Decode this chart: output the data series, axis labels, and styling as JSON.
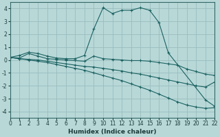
{
  "background_color": "#b8d8d8",
  "grid_color": "#9abcbc",
  "line_color": "#1a6060",
  "xlabel": "Humidex (Indice chaleur)",
  "xlim": [
    0,
    22
  ],
  "ylim": [
    -4.5,
    4.5
  ],
  "xticks": [
    0,
    1,
    2,
    3,
    4,
    5,
    6,
    7,
    8,
    9,
    10,
    11,
    12,
    13,
    14,
    15,
    16,
    17,
    18,
    19,
    20,
    21,
    22
  ],
  "yticks": [
    -4,
    -3,
    -2,
    -1,
    0,
    1,
    2,
    3,
    4
  ],
  "series": [
    {
      "x": [
        0,
        1,
        2,
        3,
        4,
        5,
        6,
        7,
        8,
        9,
        10,
        11,
        12,
        13,
        14,
        15,
        16,
        17,
        21,
        22
      ],
      "y": [
        0.2,
        0.35,
        0.6,
        0.5,
        0.3,
        0.15,
        0.1,
        0.1,
        0.35,
        2.4,
        4.05,
        3.6,
        3.85,
        3.85,
        4.05,
        3.85,
        2.9,
        0.55,
        -3.1,
        -3.6
      ]
    },
    {
      "x": [
        0,
        1,
        2,
        3,
        4,
        5,
        6,
        7,
        8,
        9,
        10,
        11,
        12,
        13,
        14,
        15,
        16,
        17,
        18,
        19,
        20,
        21,
        22
      ],
      "y": [
        0.2,
        0.15,
        0.5,
        0.3,
        0.1,
        0.05,
        -0.0,
        -0.05,
        -0.1,
        0.3,
        0.1,
        0.05,
        0.0,
        -0.05,
        -0.05,
        -0.1,
        -0.2,
        -0.3,
        -0.4,
        -0.7,
        -0.9,
        -1.1,
        -1.2
      ]
    },
    {
      "x": [
        0,
        1,
        2,
        3,
        4,
        5,
        6,
        7,
        8,
        9,
        10,
        11,
        12,
        13,
        14,
        15,
        16,
        17,
        18,
        19,
        20,
        21,
        22
      ],
      "y": [
        0.2,
        0.1,
        0.05,
        0.0,
        -0.1,
        -0.2,
        -0.3,
        -0.4,
        -0.5,
        -0.55,
        -0.65,
        -0.75,
        -0.85,
        -1.0,
        -1.1,
        -1.25,
        -1.4,
        -1.55,
        -1.7,
        -1.85,
        -2.0,
        -2.1,
        -1.7
      ]
    },
    {
      "x": [
        0,
        1,
        2,
        3,
        4,
        5,
        6,
        7,
        8,
        9,
        10,
        11,
        12,
        13,
        14,
        15,
        16,
        17,
        18,
        19,
        20,
        21,
        22
      ],
      "y": [
        0.2,
        0.1,
        0.0,
        -0.1,
        -0.2,
        -0.35,
        -0.5,
        -0.65,
        -0.8,
        -1.0,
        -1.2,
        -1.4,
        -1.6,
        -1.85,
        -2.1,
        -2.35,
        -2.65,
        -2.95,
        -3.25,
        -3.5,
        -3.65,
        -3.75,
        -3.7
      ]
    }
  ]
}
